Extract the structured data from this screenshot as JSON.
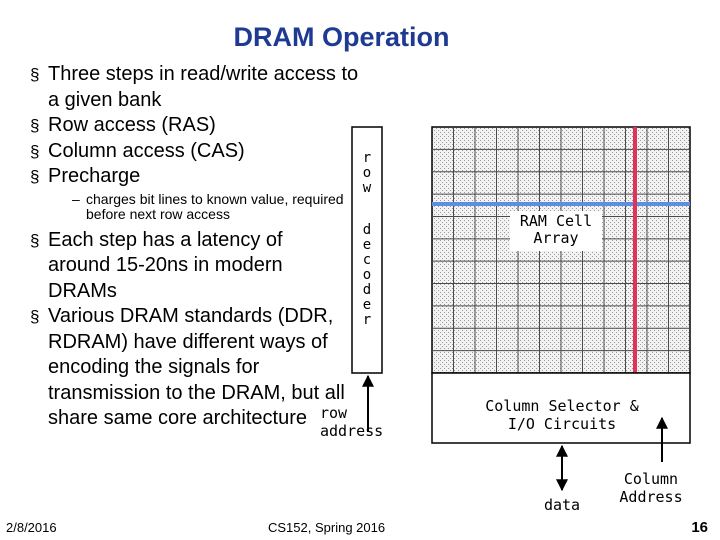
{
  "slide": {
    "title": "DRAM Operation",
    "bullets": [
      "Three steps in read/write access to a given bank",
      "Row access (RAS)",
      "Column access (CAS)",
      "Precharge"
    ],
    "sub_bullet": "charges bit lines to known value, required before next row access",
    "bullets2": [
      "Each step has a latency of around 15-20ns in modern DRAMs",
      "Various DRAM standards (DDR, RDRAM) have different ways of encoding the signals for transmission to the DRAM, but all share same core architecture"
    ]
  },
  "diagram": {
    "row_decoder_label_top": [
      "r",
      "o",
      "w"
    ],
    "row_decoder_label_bottom": [
      "d",
      "e",
      "c",
      "o",
      "d",
      "e",
      "r"
    ],
    "row_address_label": "row\naddress",
    "ram_cell_label": "RAM Cell\nArray",
    "column_selector_label": "Column Selector &\nI/O Circuits",
    "data_label": "data",
    "column_address_label": "Column\nAddress",
    "colors": {
      "row_highlight": "#5b8fe0",
      "column_highlight": "#e0325a",
      "grid_line": "#4a4a4a",
      "cell_fill": "#e8e8e8",
      "title": "#1f3a93"
    }
  },
  "footer": {
    "date": "2/8/2016",
    "course": "CS152, Spring 2016",
    "page": "16"
  }
}
